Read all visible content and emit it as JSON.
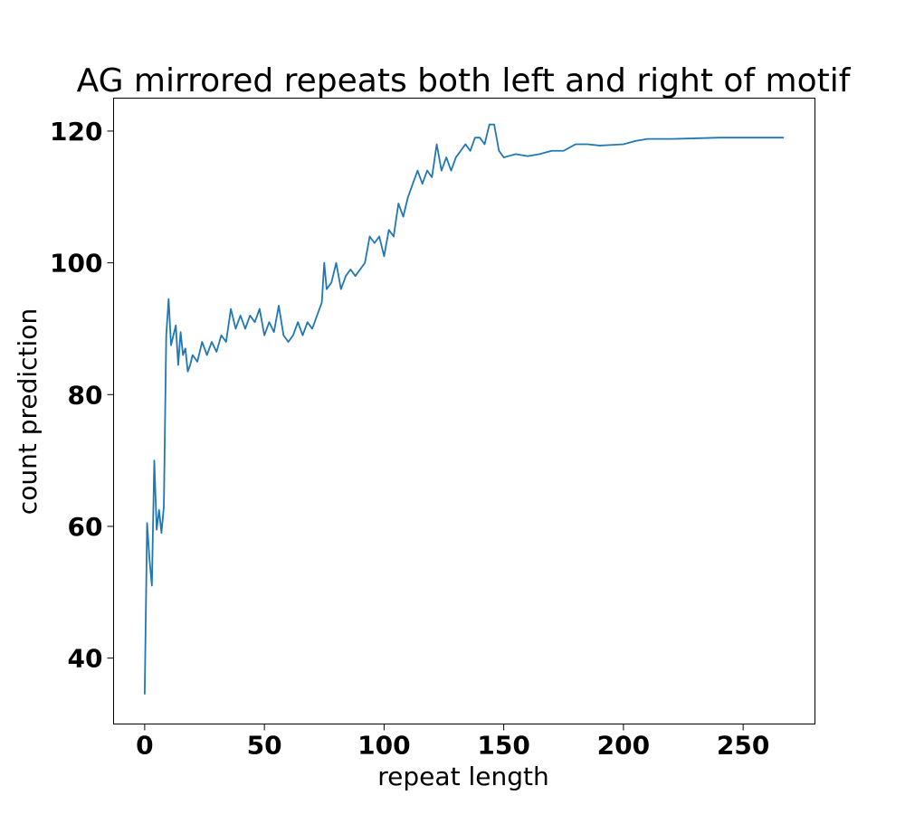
{
  "chart_data": {
    "type": "line",
    "title": "AG mirrored repeats both left and right of motif",
    "xlabel": "repeat length",
    "ylabel": "count prediction",
    "xlim": [
      -13,
      280
    ],
    "ylim": [
      30,
      125
    ],
    "xticks": [
      0,
      50,
      100,
      150,
      200,
      250
    ],
    "yticks": [
      40,
      60,
      80,
      100,
      120
    ],
    "grid": false,
    "line_color": "#1f77b4",
    "series": [
      {
        "x": [
          0,
          1,
          2,
          3,
          4,
          5,
          6,
          7,
          8,
          9,
          10,
          11,
          12,
          13,
          14,
          15,
          16,
          17,
          18,
          19,
          20,
          22,
          24,
          26,
          28,
          30,
          32,
          34,
          36,
          38,
          40,
          42,
          44,
          46,
          48,
          50,
          52,
          54,
          56,
          58,
          60,
          62,
          64,
          66,
          68,
          70,
          72,
          74,
          75,
          76,
          78,
          80,
          82,
          84,
          86,
          88,
          90,
          92,
          94,
          96,
          98,
          100,
          102,
          104,
          106,
          108,
          110,
          112,
          114,
          116,
          118,
          120,
          122,
          124,
          126,
          128,
          130,
          132,
          134,
          136,
          138,
          140,
          142,
          144,
          146,
          148,
          150,
          155,
          160,
          165,
          170,
          175,
          180,
          185,
          190,
          195,
          200,
          205,
          210,
          215,
          220,
          230,
          240,
          250,
          260,
          267
        ],
        "y": [
          34.5,
          60.5,
          55,
          51,
          70,
          59.5,
          62.5,
          59,
          63,
          89,
          94.5,
          87.5,
          89,
          90.5,
          84.5,
          89.5,
          86,
          87,
          83.5,
          84.5,
          86,
          85,
          88,
          86,
          88,
          86.5,
          89,
          88,
          93,
          90,
          92,
          90,
          92,
          91,
          93,
          89,
          91,
          89.5,
          93.5,
          89,
          88,
          89,
          91,
          89,
          91,
          90,
          92,
          94,
          100,
          96,
          97,
          100,
          96,
          98,
          99,
          98,
          99,
          100,
          104,
          103,
          104,
          101,
          105,
          104,
          109,
          107,
          110,
          112,
          114,
          112,
          114,
          113,
          118,
          114,
          116,
          114,
          116,
          117,
          118,
          117,
          119,
          119,
          118,
          121,
          121,
          117,
          116,
          116.5,
          116.2,
          116.5,
          117,
          117,
          118,
          118,
          117.8,
          117.9,
          118,
          118.5,
          118.8,
          118.8,
          118.8,
          118.9,
          119,
          119,
          119,
          119
        ]
      }
    ]
  }
}
